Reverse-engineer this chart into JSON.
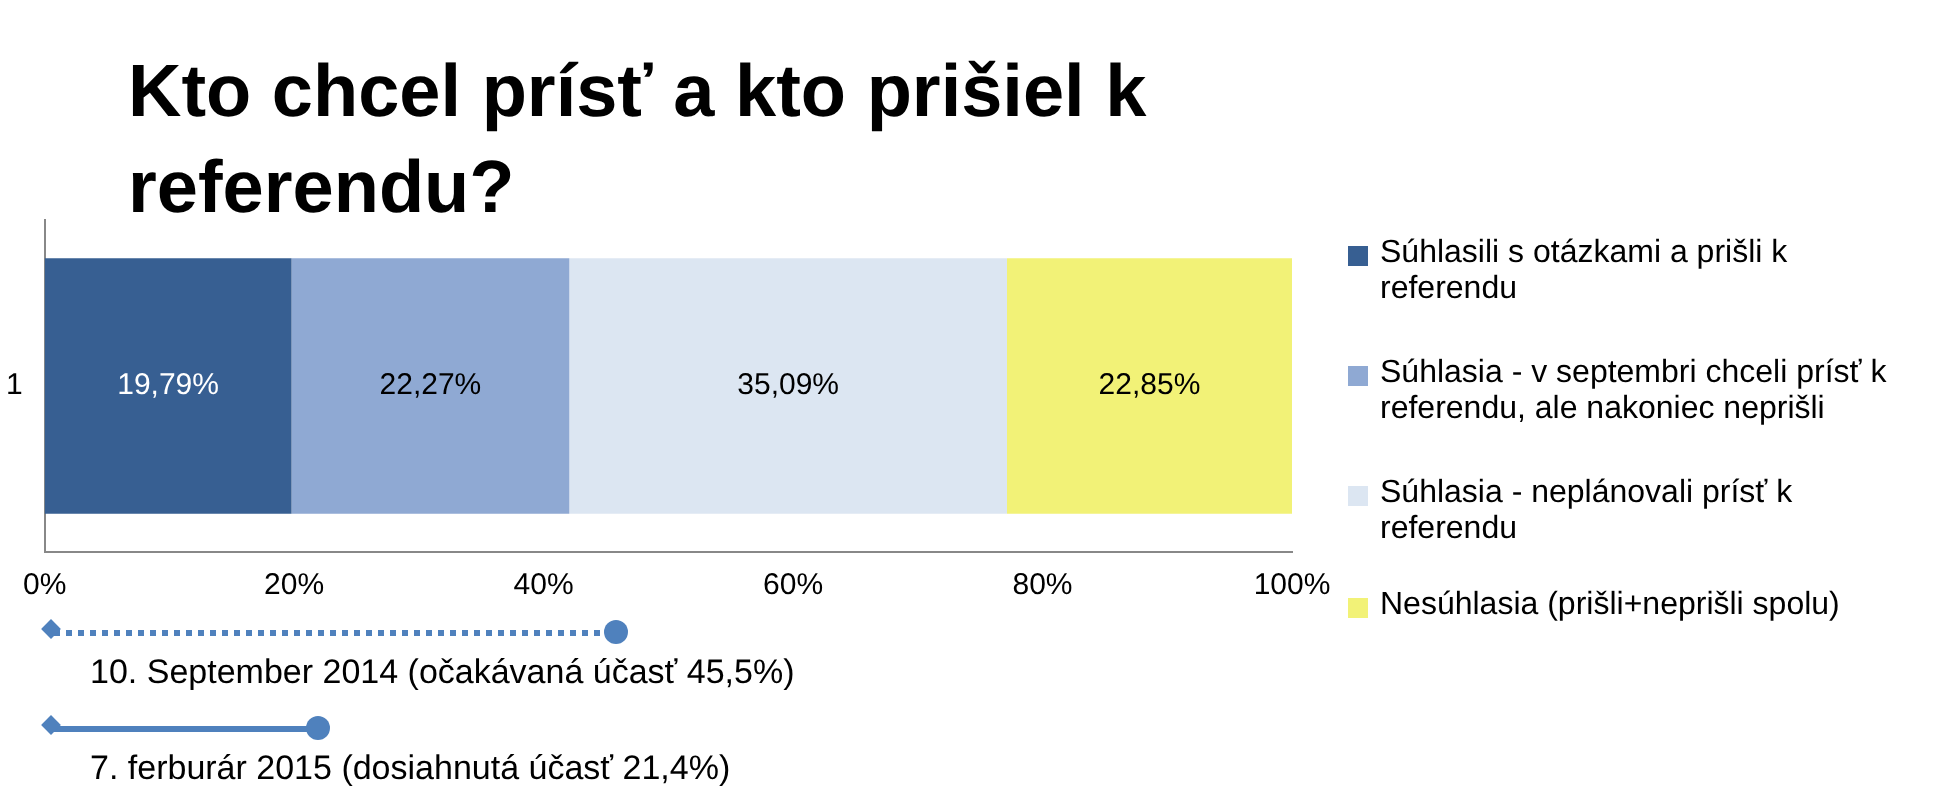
{
  "chart_data": {
    "type": "bar",
    "orientation": "horizontal",
    "stacked": true,
    "title": "Kto chcel prísť a kto prišiel k referendu?",
    "categories": [
      "1"
    ],
    "series": [
      {
        "name": "Súhlasili s otázkami a prišli k referendu",
        "color": "#375f92",
        "values": [
          19.79
        ],
        "value_labels": [
          "19,79%"
        ]
      },
      {
        "name": "Súhlasia - v septembri chceli prísť k referendu, ale nakoniec neprišli",
        "color": "#8fa9d3",
        "values": [
          22.27
        ],
        "value_labels": [
          "22,27%"
        ]
      },
      {
        "name": "Súhlasia - neplánovali prísť k referendu",
        "color": "#dce6f2",
        "values": [
          35.09
        ],
        "value_labels": [
          "35,09%"
        ]
      },
      {
        "name": "Nesúhlasia (prišli+neprišli spolu)",
        "color": "#f2f277",
        "values": [
          22.85
        ],
        "value_labels": [
          "22,85%"
        ]
      }
    ],
    "xlim": [
      0,
      100
    ],
    "xticks": [
      {
        "value": 0,
        "label": "0%"
      },
      {
        "value": 20,
        "label": "20%"
      },
      {
        "value": 40,
        "label": "40%"
      },
      {
        "value": 60,
        "label": "60%"
      },
      {
        "value": 80,
        "label": "80%"
      },
      {
        "value": 100,
        "label": "100%"
      }
    ],
    "legend": "right",
    "annotations": [
      "10. September 2014 (očakávaná účasť 45,5%)",
      "7. ferburár 2015 (dosiahnutá účasť 21,4%)"
    ]
  }
}
